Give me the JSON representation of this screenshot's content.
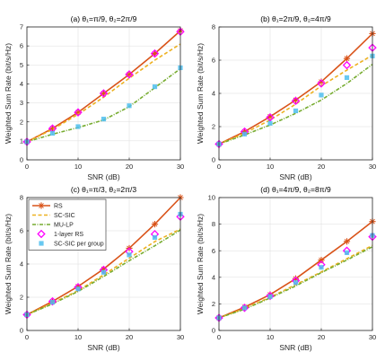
{
  "colors": {
    "RS": "#d95319",
    "SC-SIC": "#edb120",
    "MU-LP": "#77ac30",
    "1-layer RS": "#ff00ff",
    "SC-SIC per group": "#4dbeee"
  },
  "legend": {
    "placement": "top-left of panel (c)",
    "entries": [
      {
        "key": "RS",
        "label": "RS"
      },
      {
        "key": "SC-SIC",
        "label": "SC-SIC"
      },
      {
        "key": "MU-LP",
        "label": "MU-LP"
      },
      {
        "key": "1-layer RS",
        "label": "1-layer RS"
      },
      {
        "key": "SC-SIC per group",
        "label": "SC-SIC per group"
      }
    ]
  },
  "chart_data": [
    {
      "type": "line",
      "title": "(a) θ₁=π/9, θ₂=2π/9",
      "xlabel": "SNR (dB)",
      "ylabel": "Weighted Sum Rate (bit/s/Hz)",
      "xlim": [
        0,
        30
      ],
      "ylim": [
        0,
        7
      ],
      "xticks": [
        0,
        10,
        20,
        30
      ],
      "yticks": [
        0,
        1,
        2,
        3,
        4,
        5,
        6,
        7
      ],
      "grid": true,
      "x": [
        0,
        5,
        10,
        15,
        20,
        25,
        30
      ],
      "series": [
        {
          "name": "RS",
          "values": [
            0.95,
            1.65,
            2.5,
            3.5,
            4.5,
            5.6,
            6.8
          ]
        },
        {
          "name": "SC-SIC",
          "values": [
            0.95,
            1.6,
            2.4,
            3.3,
            4.3,
            5.25,
            6.1
          ]
        },
        {
          "name": "MU-LP",
          "values": [
            0.95,
            1.35,
            1.7,
            2.1,
            2.8,
            3.8,
            4.8
          ]
        },
        {
          "name": "1-layer RS",
          "values": [
            0.95,
            1.65,
            2.5,
            3.5,
            4.5,
            5.6,
            6.75
          ]
        },
        {
          "name": "SC-SIC per group",
          "values": [
            0.95,
            1.4,
            1.75,
            2.15,
            2.85,
            3.85,
            4.85
          ]
        }
      ]
    },
    {
      "type": "line",
      "title": "(b) θ₁=2π/9, θ₂=4π/9",
      "xlabel": "SNR (dB)",
      "ylabel": "Weighted Sum Rate (bit/s/Hz)",
      "xlim": [
        0,
        30
      ],
      "ylim": [
        0,
        8
      ],
      "xticks": [
        0,
        10,
        20,
        30
      ],
      "yticks": [
        0,
        2,
        4,
        6,
        8
      ],
      "grid": true,
      "x": [
        0,
        5,
        10,
        15,
        20,
        25,
        30
      ],
      "series": [
        {
          "name": "RS",
          "values": [
            0.95,
            1.7,
            2.6,
            3.6,
            4.7,
            6.1,
            7.6
          ]
        },
        {
          "name": "SC-SIC",
          "values": [
            0.95,
            1.6,
            2.4,
            3.35,
            4.45,
            5.4,
            6.3
          ]
        },
        {
          "name": "MU-LP",
          "values": [
            0.95,
            1.5,
            2.1,
            2.8,
            3.6,
            4.6,
            5.75
          ]
        },
        {
          "name": "1-layer RS",
          "values": [
            0.95,
            1.7,
            2.55,
            3.55,
            4.6,
            5.7,
            6.75
          ]
        },
        {
          "name": "SC-SIC per group",
          "values": [
            0.95,
            1.55,
            2.2,
            2.95,
            3.9,
            4.95,
            6.25
          ]
        }
      ]
    },
    {
      "type": "line",
      "title": "(c) θ₁=π/3, θ₂=2π/3",
      "xlabel": "SNR (dB)",
      "ylabel": "Weighted Sum Rate (bit/s/Hz)",
      "xlim": [
        0,
        30
      ],
      "ylim": [
        0,
        8
      ],
      "xticks": [
        0,
        10,
        20,
        30
      ],
      "yticks": [
        0,
        2,
        4,
        6,
        8
      ],
      "grid": true,
      "x": [
        0,
        5,
        10,
        15,
        20,
        25,
        30
      ],
      "series": [
        {
          "name": "RS",
          "values": [
            0.95,
            1.75,
            2.65,
            3.7,
            4.95,
            6.4,
            8.0
          ]
        },
        {
          "name": "SC-SIC",
          "values": [
            0.95,
            1.65,
            2.4,
            3.35,
            4.35,
            5.35,
            6.1
          ]
        },
        {
          "name": "MU-LP",
          "values": [
            0.95,
            1.6,
            2.35,
            3.25,
            4.2,
            5.1,
            6.05
          ]
        },
        {
          "name": "1-layer RS",
          "values": [
            0.95,
            1.75,
            2.6,
            3.65,
            4.75,
            5.8,
            6.85
          ]
        },
        {
          "name": "SC-SIC per group",
          "values": [
            0.95,
            1.7,
            2.5,
            3.5,
            4.55,
            5.6,
            7.0
          ]
        }
      ]
    },
    {
      "type": "line",
      "title": "(d) θ₁=4π/9, θ₂=8π/9",
      "xlabel": "SNR (dB)",
      "ylabel": "Weighted Sum Rate (bit/s/Hz)",
      "xlim": [
        0,
        30
      ],
      "ylim": [
        0,
        10
      ],
      "xticks": [
        0,
        10,
        20,
        30
      ],
      "yticks": [
        0,
        2,
        4,
        6,
        8,
        10
      ],
      "grid": true,
      "x": [
        0,
        5,
        10,
        15,
        20,
        25,
        30
      ],
      "series": [
        {
          "name": "RS",
          "values": [
            0.95,
            1.75,
            2.7,
            3.9,
            5.3,
            6.7,
            8.2
          ]
        },
        {
          "name": "SC-SIC",
          "values": [
            0.95,
            1.65,
            2.5,
            3.45,
            4.4,
            5.4,
            6.4
          ]
        },
        {
          "name": "MU-LP",
          "values": [
            0.95,
            1.6,
            2.45,
            3.35,
            4.35,
            5.3,
            6.3
          ]
        },
        {
          "name": "1-layer RS",
          "values": [
            0.95,
            1.7,
            2.6,
            3.75,
            4.95,
            6.0,
            7.05
          ]
        },
        {
          "name": "SC-SIC per group",
          "values": [
            0.95,
            1.7,
            2.55,
            3.6,
            4.75,
            5.85,
            7.15
          ]
        }
      ]
    }
  ]
}
